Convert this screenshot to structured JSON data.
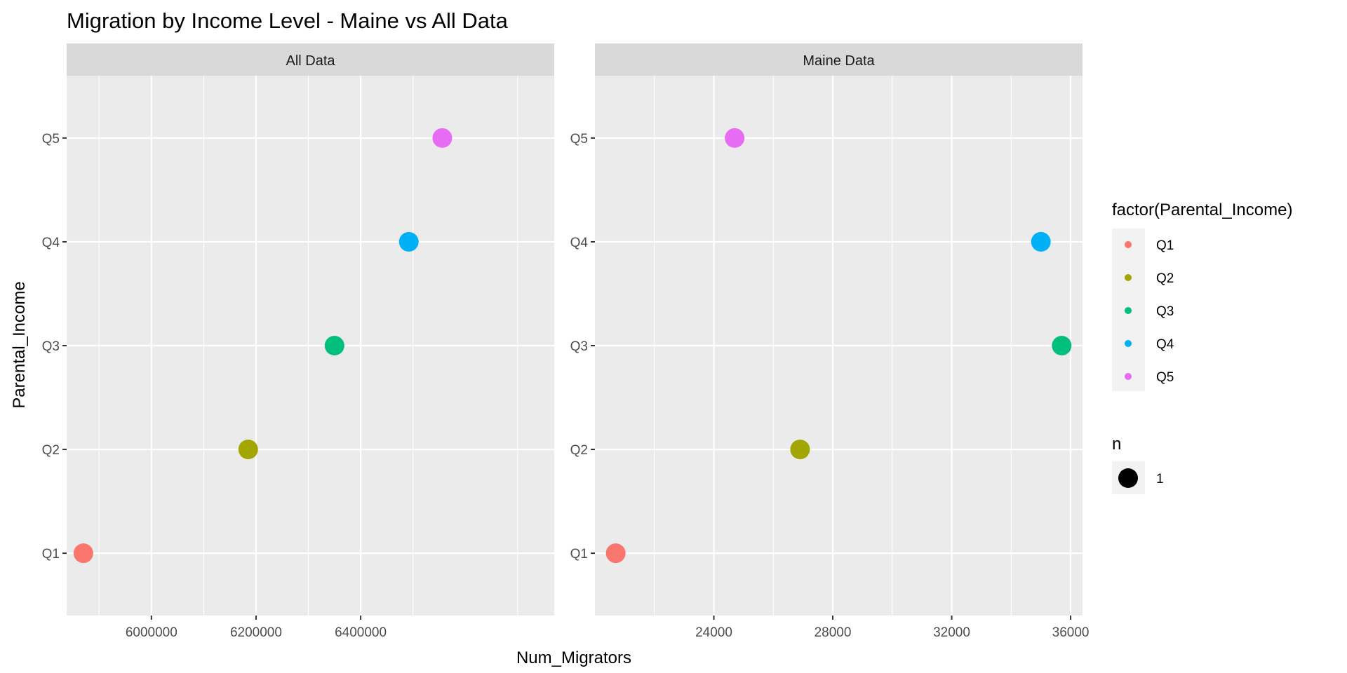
{
  "chart_data": {
    "type": "scatter",
    "title": "Migration by Income Level - Maine vs All Data",
    "xlabel": "Num_Migrators",
    "ylabel": "Parental_Income",
    "y_categories": [
      "Q1",
      "Q2",
      "Q3",
      "Q4",
      "Q5"
    ],
    "colors": {
      "Q1": "#F8766D",
      "Q2": "#A3A500",
      "Q3": "#00BF7D",
      "Q4": "#00B0F6",
      "Q5": "#E76BF3"
    },
    "panel_bg": "#EBEBEB",
    "strip_bg": "#D9D9D9",
    "grid": true,
    "facets": [
      {
        "name": "All Data",
        "xlim": [
          5838000,
          6770000
        ],
        "x_ticks": [
          6000000,
          6200000,
          6400000
        ],
        "x_tick_labels": [
          "6000000",
          "6200000",
          "6400000"
        ],
        "x_minor": [
          5900000,
          6100000,
          6300000,
          6500000,
          6700000
        ],
        "points": [
          {
            "category": "Q1",
            "x": 5870000
          },
          {
            "category": "Q2",
            "x": 6185000
          },
          {
            "category": "Q3",
            "x": 6350000
          },
          {
            "category": "Q4",
            "x": 6492000
          },
          {
            "category": "Q5",
            "x": 6556000
          }
        ]
      },
      {
        "name": "Maine Data",
        "xlim": [
          20000,
          36400
        ],
        "x_ticks": [
          24000,
          28000,
          32000,
          36000
        ],
        "x_tick_labels": [
          "24000",
          "28000",
          "32000",
          "36000"
        ],
        "x_minor": [
          22000,
          26000,
          30000,
          34000
        ],
        "points": [
          {
            "category": "Q1",
            "x": 20700
          },
          {
            "category": "Q2",
            "x": 26900
          },
          {
            "category": "Q3",
            "x": 35700
          },
          {
            "category": "Q4",
            "x": 35000
          },
          {
            "category": "Q5",
            "x": 24700
          }
        ]
      }
    ],
    "legend": {
      "placement": "right",
      "color_title": "factor(Parental_Income)",
      "color_items": [
        "Q1",
        "Q2",
        "Q3",
        "Q4",
        "Q5"
      ],
      "size_title": "n",
      "size_items": [
        "1"
      ]
    }
  }
}
